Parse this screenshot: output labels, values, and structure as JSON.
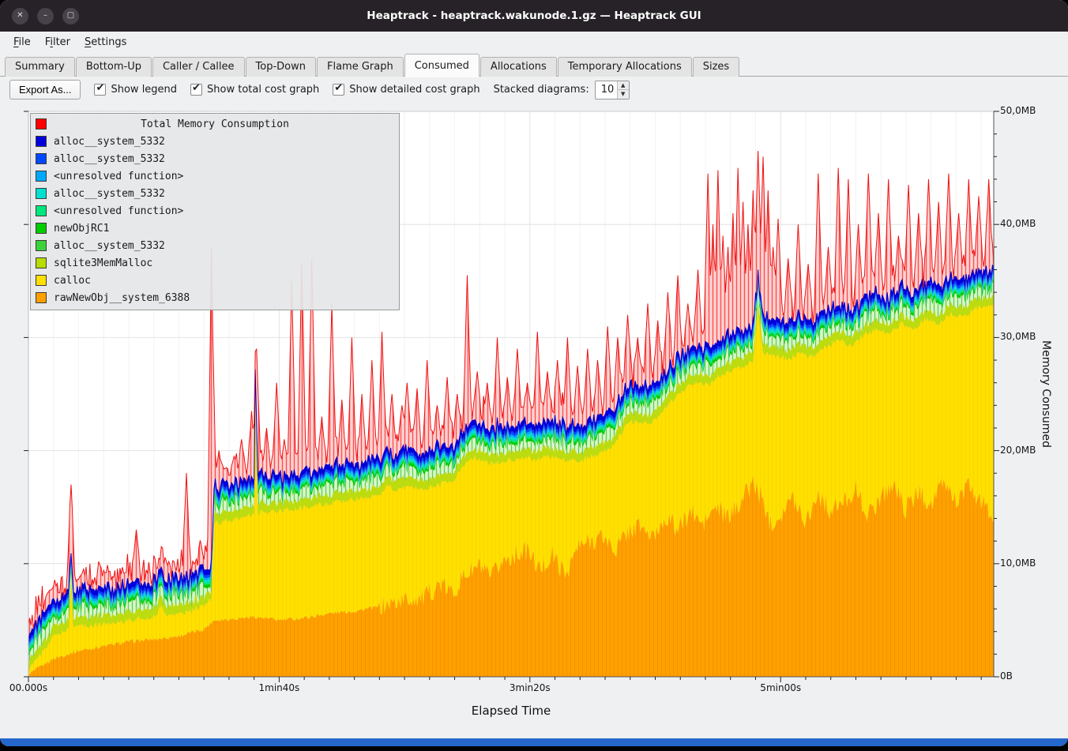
{
  "window": {
    "title": "Heaptrack - heaptrack.wakunode.1.gz — Heaptrack GUI"
  },
  "icons": {
    "close": "✕",
    "minimize": "–",
    "maximize": "▢",
    "check": "✔",
    "spin_up": "▲",
    "spin_down": "▼"
  },
  "menu": {
    "items": [
      {
        "pre": "",
        "key": "F",
        "post": "ile"
      },
      {
        "pre": "F",
        "key": "i",
        "post": "lter"
      },
      {
        "pre": "",
        "key": "S",
        "post": "ettings"
      }
    ]
  },
  "tabs": {
    "active_index": 5,
    "items": [
      {
        "label": "Summary"
      },
      {
        "label": "Bottom-Up"
      },
      {
        "label": "Caller / Callee"
      },
      {
        "label": "Top-Down"
      },
      {
        "label": "Flame Graph"
      },
      {
        "label": "Consumed"
      },
      {
        "label": "Allocations"
      },
      {
        "label": "Temporary Allocations"
      },
      {
        "label": "Sizes"
      }
    ]
  },
  "toolbar": {
    "export_label": "Export As...",
    "checkboxes": [
      {
        "label": "Show legend",
        "checked": true
      },
      {
        "label": "Show total cost graph",
        "checked": true
      },
      {
        "label": "Show detailed cost graph",
        "checked": true
      }
    ],
    "stacked_label": "Stacked diagrams:",
    "stacked_value": "10"
  },
  "legend": {
    "title": "Total Memory Consumption",
    "title_color": "#ff0000",
    "items": [
      {
        "label": "alloc__system_5332",
        "color": "#0000dc"
      },
      {
        "label": "alloc__system_5332",
        "color": "#0048ff"
      },
      {
        "label": "<unresolved function>",
        "color": "#00a8ff"
      },
      {
        "label": "alloc__system_5332",
        "color": "#00dfd0"
      },
      {
        "label": "<unresolved function>",
        "color": "#00e87e"
      },
      {
        "label": "newObjRC1",
        "color": "#00cd00"
      },
      {
        "label": "alloc__system_5332",
        "color": "#3ad43a"
      },
      {
        "label": "sqlite3MemMalloc",
        "color": "#b8dc00"
      },
      {
        "label": "calloc",
        "color": "#ffe000"
      },
      {
        "label": "rawNewObj__system_6388",
        "color": "#ffa000"
      }
    ]
  },
  "chart_data": {
    "type": "stacked-area",
    "x_axis": {
      "label": "Elapsed Time",
      "max": 385,
      "ticks": [
        {
          "t": 0,
          "label": "00.000s"
        },
        {
          "t": 100,
          "label": "1min40s"
        },
        {
          "t": 200,
          "label": "3min20s"
        },
        {
          "t": 300,
          "label": "5min00s"
        }
      ]
    },
    "y_axis": {
      "label": "Memory Consumed",
      "max": 50,
      "ticks": [
        {
          "v": 0,
          "label": "0B"
        },
        {
          "v": 10,
          "label": "10,0MB"
        },
        {
          "v": 20,
          "label": "20,0MB"
        },
        {
          "v": 30,
          "label": "30,0MB"
        },
        {
          "v": 40,
          "label": "40,0MB"
        },
        {
          "v": 50,
          "label": "50,0MB"
        }
      ]
    },
    "top_line_color": "#0000cc",
    "bands": [
      {
        "name": "rawNewObj__system_6388",
        "color": "#ffa000",
        "overlay_pattern": "vo",
        "jitter": 0.9,
        "jitter_from": 140,
        "keyframes": [
          [
            0,
            0.2
          ],
          [
            10,
            1.6
          ],
          [
            20,
            2.3
          ],
          [
            30,
            2.7
          ],
          [
            40,
            3.1
          ],
          [
            50,
            3.3
          ],
          [
            60,
            3.6
          ],
          [
            70,
            4.2
          ],
          [
            74,
            5.0
          ],
          [
            80,
            5.1
          ],
          [
            90,
            5.3
          ],
          [
            100,
            5.0
          ],
          [
            110,
            5.2
          ],
          [
            120,
            5.6
          ],
          [
            130,
            5.8
          ],
          [
            140,
            6.2
          ],
          [
            150,
            6.8
          ],
          [
            158,
            7.0
          ],
          [
            164,
            8.2
          ],
          [
            169,
            7.4
          ],
          [
            174,
            9.0
          ],
          [
            180,
            9.8
          ],
          [
            184,
            8.6
          ],
          [
            189,
            10.2
          ],
          [
            194,
            10.8
          ],
          [
            199,
            11.2
          ],
          [
            204,
            9.4
          ],
          [
            209,
            10.8
          ],
          [
            214,
            9.0
          ],
          [
            219,
            11.4
          ],
          [
            224,
            12.0
          ],
          [
            229,
            12.4
          ],
          [
            234,
            11.2
          ],
          [
            239,
            12.8
          ],
          [
            244,
            13.4
          ],
          [
            249,
            12.2
          ],
          [
            254,
            14.2
          ],
          [
            259,
            13.0
          ],
          [
            264,
            14.6
          ],
          [
            269,
            13.4
          ],
          [
            274,
            15.0
          ],
          [
            279,
            14.0
          ],
          [
            284,
            15.6
          ],
          [
            289,
            17.2
          ],
          [
            292,
            16.0
          ],
          [
            296,
            13.6
          ],
          [
            300,
            14.4
          ],
          [
            305,
            15.8
          ],
          [
            310,
            13.8
          ],
          [
            315,
            16.2
          ],
          [
            320,
            14.6
          ],
          [
            325,
            15.4
          ],
          [
            330,
            16.6
          ],
          [
            335,
            14.2
          ],
          [
            340,
            16.0
          ],
          [
            345,
            17.0
          ],
          [
            350,
            14.8
          ],
          [
            355,
            16.4
          ],
          [
            360,
            15.2
          ],
          [
            365,
            17.2
          ],
          [
            370,
            15.6
          ],
          [
            375,
            16.8
          ],
          [
            380,
            15.4
          ],
          [
            385,
            14.2
          ]
        ]
      },
      {
        "name": "calloc",
        "color": "#ffe000",
        "overlay_pattern": "vy",
        "jitter": 0.25,
        "keyframes": [
          [
            0,
            0.6
          ],
          [
            5,
            2.0
          ],
          [
            10,
            3.6
          ],
          [
            14,
            4.0
          ],
          [
            16,
            4.2
          ],
          [
            17,
            7.8
          ],
          [
            18,
            4.6
          ],
          [
            25,
            4.5
          ],
          [
            30,
            4.7
          ],
          [
            40,
            5.0
          ],
          [
            50,
            5.3
          ],
          [
            53,
            6.2
          ],
          [
            56,
            5.4
          ],
          [
            60,
            5.6
          ],
          [
            65,
            5.8
          ],
          [
            70,
            6.3
          ],
          [
            73,
            6.9
          ],
          [
            74,
            13.6
          ],
          [
            80,
            13.8
          ],
          [
            85,
            14.0
          ],
          [
            90,
            14.3
          ],
          [
            90.5,
            24.0
          ],
          [
            91.5,
            14.5
          ],
          [
            100,
            14.6
          ],
          [
            110,
            15.0
          ],
          [
            120,
            15.3
          ],
          [
            130,
            15.7
          ],
          [
            140,
            16.0
          ],
          [
            143,
            17.0
          ],
          [
            146,
            16.5
          ],
          [
            152,
            16.8
          ],
          [
            158,
            16.6
          ],
          [
            164,
            17.0
          ],
          [
            170,
            17.5
          ],
          [
            174,
            18.8
          ],
          [
            178,
            19.4
          ],
          [
            183,
            18.9
          ],
          [
            190,
            19.0
          ],
          [
            196,
            19.4
          ],
          [
            202,
            19.2
          ],
          [
            208,
            19.5
          ],
          [
            214,
            19.2
          ],
          [
            220,
            19.1
          ],
          [
            226,
            19.6
          ],
          [
            232,
            20.2
          ],
          [
            236,
            21.4
          ],
          [
            239,
            22.5
          ],
          [
            244,
            22.6
          ],
          [
            248,
            22.4
          ],
          [
            252,
            23.2
          ],
          [
            256,
            24.2
          ],
          [
            259,
            25.1
          ],
          [
            263,
            25.6
          ],
          [
            267,
            26.1
          ],
          [
            271,
            25.8
          ],
          [
            275,
            26.5
          ],
          [
            280,
            27.0
          ],
          [
            285,
            27.5
          ],
          [
            289,
            27.9
          ],
          [
            291,
            32.6
          ],
          [
            293,
            28.6
          ],
          [
            298,
            28.3
          ],
          [
            303,
            28.1
          ],
          [
            308,
            28.6
          ],
          [
            313,
            28.2
          ],
          [
            318,
            29.2
          ],
          [
            323,
            29.8
          ],
          [
            328,
            29.3
          ],
          [
            333,
            30.2
          ],
          [
            338,
            30.8
          ],
          [
            343,
            30.3
          ],
          [
            348,
            31.2
          ],
          [
            353,
            30.7
          ],
          [
            358,
            31.7
          ],
          [
            363,
            31.2
          ],
          [
            368,
            32.2
          ],
          [
            373,
            31.8
          ],
          [
            378,
            32.6
          ],
          [
            385,
            33.0
          ]
        ]
      },
      {
        "name": "sqlite3MemMalloc",
        "color": "#bcdc0f",
        "delta": 0.8,
        "jitter": 0.2
      },
      {
        "name": "alloc__system_5332",
        "color": "#6fe06f",
        "fill_pattern": "hg",
        "delta": 0.3,
        "jitter": 1.0,
        "positive_jitter": true
      },
      {
        "name": "newObjRC1",
        "color": "#00cd00",
        "delta": 0.25,
        "jitter": 0.08
      },
      {
        "name": "<unresolved function>",
        "color": "#00e87e",
        "delta": 0.2,
        "jitter": 0.05
      },
      {
        "name": "alloc__system_5332",
        "color": "#00dfd0",
        "delta": 0.2,
        "jitter": 0.05
      },
      {
        "name": "<unresolved function>",
        "color": "#00a8ff",
        "delta": 0.2,
        "jitter": 0.05
      },
      {
        "name": "alloc__system_5332",
        "color": "#0048ff",
        "delta": 0.25,
        "jitter": 0.05
      },
      {
        "name": "alloc__system_5332",
        "color": "#0000dc",
        "delta": 0.45,
        "jitter": 0.08
      }
    ],
    "total_series": {
      "name": "Total Memory Consumption",
      "color": "#ee1111",
      "base_offset": 1.0,
      "zigzag": 1.2,
      "spike_half_width": 1.6,
      "spikes": [
        [
          8,
          7.5
        ],
        [
          12,
          6.5
        ],
        [
          17,
          17
        ],
        [
          23,
          8
        ],
        [
          27,
          7.5
        ],
        [
          31,
          9.2
        ],
        [
          35,
          7.2
        ],
        [
          39,
          8.6
        ],
        [
          43,
          13
        ],
        [
          47,
          8.2
        ],
        [
          51,
          9.6
        ],
        [
          55,
          10.2
        ],
        [
          59,
          8.8
        ],
        [
          63,
          18
        ],
        [
          67,
          10
        ],
        [
          71,
          9.8
        ],
        [
          73,
          38
        ],
        [
          76,
          20
        ],
        [
          79,
          18.5
        ],
        [
          82,
          19.5
        ],
        [
          85,
          21
        ],
        [
          89,
          23.5
        ],
        [
          91,
          29
        ],
        [
          95,
          22
        ],
        [
          99,
          26
        ],
        [
          102,
          21
        ],
        [
          105,
          35
        ],
        [
          109,
          36.5
        ],
        [
          113,
          37
        ],
        [
          117,
          23
        ],
        [
          121,
          33
        ],
        [
          125,
          24.5
        ],
        [
          129,
          30
        ],
        [
          133,
          25
        ],
        [
          137,
          28
        ],
        [
          141,
          30.5
        ],
        [
          145,
          25
        ],
        [
          149,
          24
        ],
        [
          151,
          26
        ],
        [
          155,
          25.5
        ],
        [
          159,
          28
        ],
        [
          163,
          24
        ],
        [
          167,
          26.5
        ],
        [
          171,
          25
        ],
        [
          175,
          35.5
        ],
        [
          179,
          27
        ],
        [
          183,
          26
        ],
        [
          187,
          30
        ],
        [
          191,
          26.5
        ],
        [
          195,
          29
        ],
        [
          199,
          26
        ],
        [
          203,
          30.5
        ],
        [
          207,
          27
        ],
        [
          211,
          28
        ],
        [
          215,
          30
        ],
        [
          219,
          27.5
        ],
        [
          223,
          29
        ],
        [
          227,
          28
        ],
        [
          231,
          31
        ],
        [
          235,
          30
        ],
        [
          239,
          32
        ],
        [
          243,
          30
        ],
        [
          247,
          33
        ],
        [
          251,
          31.5
        ],
        [
          255,
          34
        ],
        [
          259,
          35.5
        ],
        [
          263,
          33
        ],
        [
          267,
          36
        ],
        [
          271,
          44.5
        ],
        [
          273,
          40
        ],
        [
          275,
          44.8
        ],
        [
          277,
          39
        ],
        [
          279,
          38
        ],
        [
          281,
          41
        ],
        [
          283,
          45
        ],
        [
          285,
          42
        ],
        [
          287,
          40
        ],
        [
          289,
          43
        ],
        [
          291,
          46.5
        ],
        [
          293,
          46
        ],
        [
          295,
          43
        ],
        [
          297,
          38
        ],
        [
          299,
          40.5
        ],
        [
          303,
          37
        ],
        [
          307,
          40
        ],
        [
          311,
          36.5
        ],
        [
          315,
          44.5
        ],
        [
          319,
          38
        ],
        [
          323,
          45
        ],
        [
          327,
          44
        ],
        [
          331,
          40
        ],
        [
          335,
          44.5
        ],
        [
          339,
          41
        ],
        [
          343,
          44
        ],
        [
          347,
          39
        ],
        [
          351,
          43.5
        ],
        [
          355,
          41
        ],
        [
          359,
          44
        ],
        [
          363,
          42
        ],
        [
          367,
          44.5
        ],
        [
          371,
          41
        ],
        [
          375,
          44
        ],
        [
          379,
          42.5
        ],
        [
          383,
          44
        ]
      ]
    }
  }
}
